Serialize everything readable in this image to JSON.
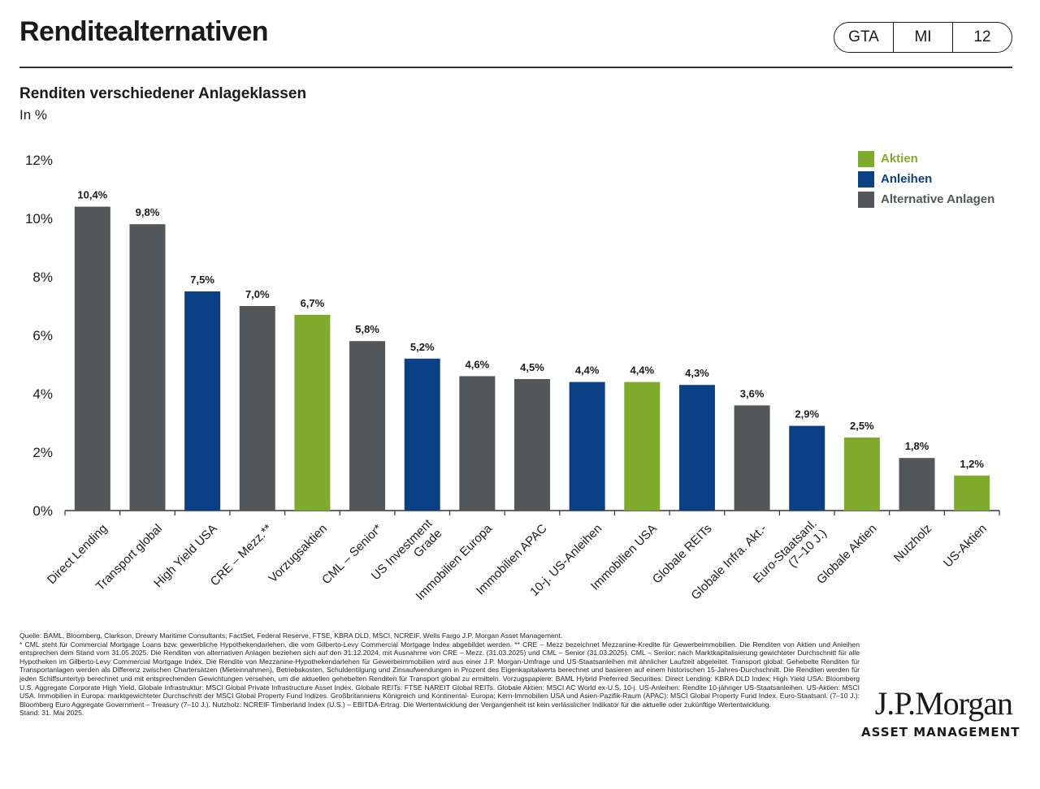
{
  "header": {
    "title": "Renditealternativen",
    "tags": [
      "GTA",
      "MI",
      "12"
    ]
  },
  "chart_header": {
    "subtitle": "Renditen verschiedener Anlageklassen",
    "unit": "In %"
  },
  "colors": {
    "Aktien": "#7fab2c",
    "Anleihen": "#0b3f86",
    "Alternative Anlagen": "#54575a"
  },
  "chart_data": {
    "type": "bar",
    "title": "Renditen verschiedener Anlageklassen",
    "ylabel": "In %",
    "ylim": [
      0,
      12
    ],
    "yticks": [
      "0%",
      "2%",
      "4%",
      "6%",
      "8%",
      "10%",
      "12%"
    ],
    "grid": false,
    "legend_position": "top-right",
    "legend": [
      "Aktien",
      "Anleihen",
      "Alternative Anlagen"
    ],
    "categories": [
      "Direct Lending",
      "Transport global",
      "High Yield USA",
      "CRE – Mezz.**",
      "Vorzugsaktien",
      "CML – Senior*",
      "US Investment\nGrade",
      "Immobilien Europa",
      "Immobilien APAC",
      "10-j. US-Anleihen",
      "Immobilien USA",
      "Globale REITs",
      "Globale Infra. Akt.-",
      "Euro-Staatsanl.\n(7–10 J.)",
      "Globale Aktien",
      "Nutzholz",
      "US-Aktien"
    ],
    "values": [
      10.4,
      9.8,
      7.5,
      7.0,
      6.7,
      5.8,
      5.2,
      4.6,
      4.5,
      4.4,
      4.4,
      4.3,
      3.6,
      2.9,
      2.5,
      1.8,
      1.2
    ],
    "value_labels": [
      "10,4%",
      "9,8%",
      "7,5%",
      "7,0%",
      "6,7%",
      "5,8%",
      "5,2%",
      "4,6%",
      "4,5%",
      "4,4%",
      "4,4%",
      "4,3%",
      "3,6%",
      "2,9%",
      "2,5%",
      "1,8%",
      "1,2%"
    ],
    "groups": [
      "Alternative Anlagen",
      "Alternative Anlagen",
      "Anleihen",
      "Alternative Anlagen",
      "Aktien",
      "Alternative Anlagen",
      "Anleihen",
      "Alternative Anlagen",
      "Alternative Anlagen",
      "Anleihen",
      "Aktien",
      "Anleihen",
      "Alternative Anlagen",
      "Anleihen",
      "Aktien",
      "Alternative Anlagen",
      "Aktien"
    ]
  },
  "footnotes": [
    "Quelle: BAML, Bloomberg, Clarkson, Drewry Maritime Consultants, FactSet, Federal Reserve, FTSE, KBRA DLD, MSCI, NCREIF, Wells Fargo J.P. Morgan Asset Management.",
    "* CML steht für Commercial Mortgage Loans bzw. gewerbliche Hypothekendarlehen, die vom Gilberto-Levy Commercial Mortgage Index abgebildet werden. ** CRE – Mezz bezeichnet Mezzanine-Kredite für Gewerbeimmobilien. Die Renditen von Aktien und Anleihen entsprechen dem Stand vom 31.05.2025. Die Renditen von alternativen Anlagen beziehen sich auf den 31.12.2024, mit Ausnahme von CRE – Mezz. (31.03.2025) und CML – Senior (31.03.2025). CML – Senior: nach Marktkapitalisierung gewichteter Durchschnitt für alle Hypotheken im Gilberto-Levy Commercial Mortgage Index. Die Rendite von Mezzanine-Hypothekendarlehen für Gewerbeimmobilien wird aus einer J.P. Morgan-Umfrage und US-Staatsanleihen mit ähnlicher Laufzeit abgeleitet. Transport global: Gehebelte Renditen für Transportanlagen werden als Differenz zwischen Chartersätzen (Mieteinnahmen), Betriebskosten, Schuldentilgung und Zinsaufwendungen in Prozent des Eigenkapitalwerts berechnet und basieren auf einem historischen 15-Jahres-Durchschnitt. Die Renditen werden für jeden Schiffsuntertyp berechnet und mit entsprechenden Gewichtungen versehen, um die aktuellen gehebelten Renditen für Transport global zu ermitteln. Vorzugspapiere: BAML Hybrid Preferred Securities. Direct Lending: KBRA DLD Index; High Yield USA: Bloomberg U.S. Aggregate Corporate High Yield. Globale Infrastruktur: MSCI Global Private Infrastructure Asset Index. Globale REITs: FTSE NAREIT Global REITs. Globale Aktien: MSCI AC World ex-U.S. 10-j. US-Anleihen: Rendite 10-jähriger US-Staatsanleihen. US-Aktien: MSCI USA. Immobilien in Europa: marktgewichteter Durchschnitt der MSCI Global Property Fund Indizes. Großbritanniens Königreich und Kontinental- Europa; Kern-Immobilien USA und Asien-Pazifik-Raum (APAC): MSCI Global Property Fund Index. Euro-Staatsanl. (7–10 J.): Bloomberg Euro Aggregate Government – Treasury (7–10 J.). Nutzholz: NCREIF Timberland Index (U.S.) – EBITDA-Ertrag. Die Wertentwicklung der Vergangenheit ist kein verlässlicher Indikator für die aktuelle oder zukünftige Wertentwicklung.",
    "Stand: 31. Mai 2025."
  ],
  "logo": {
    "main": "J.P.Morgan",
    "sub": "ASSET MANAGEMENT"
  }
}
